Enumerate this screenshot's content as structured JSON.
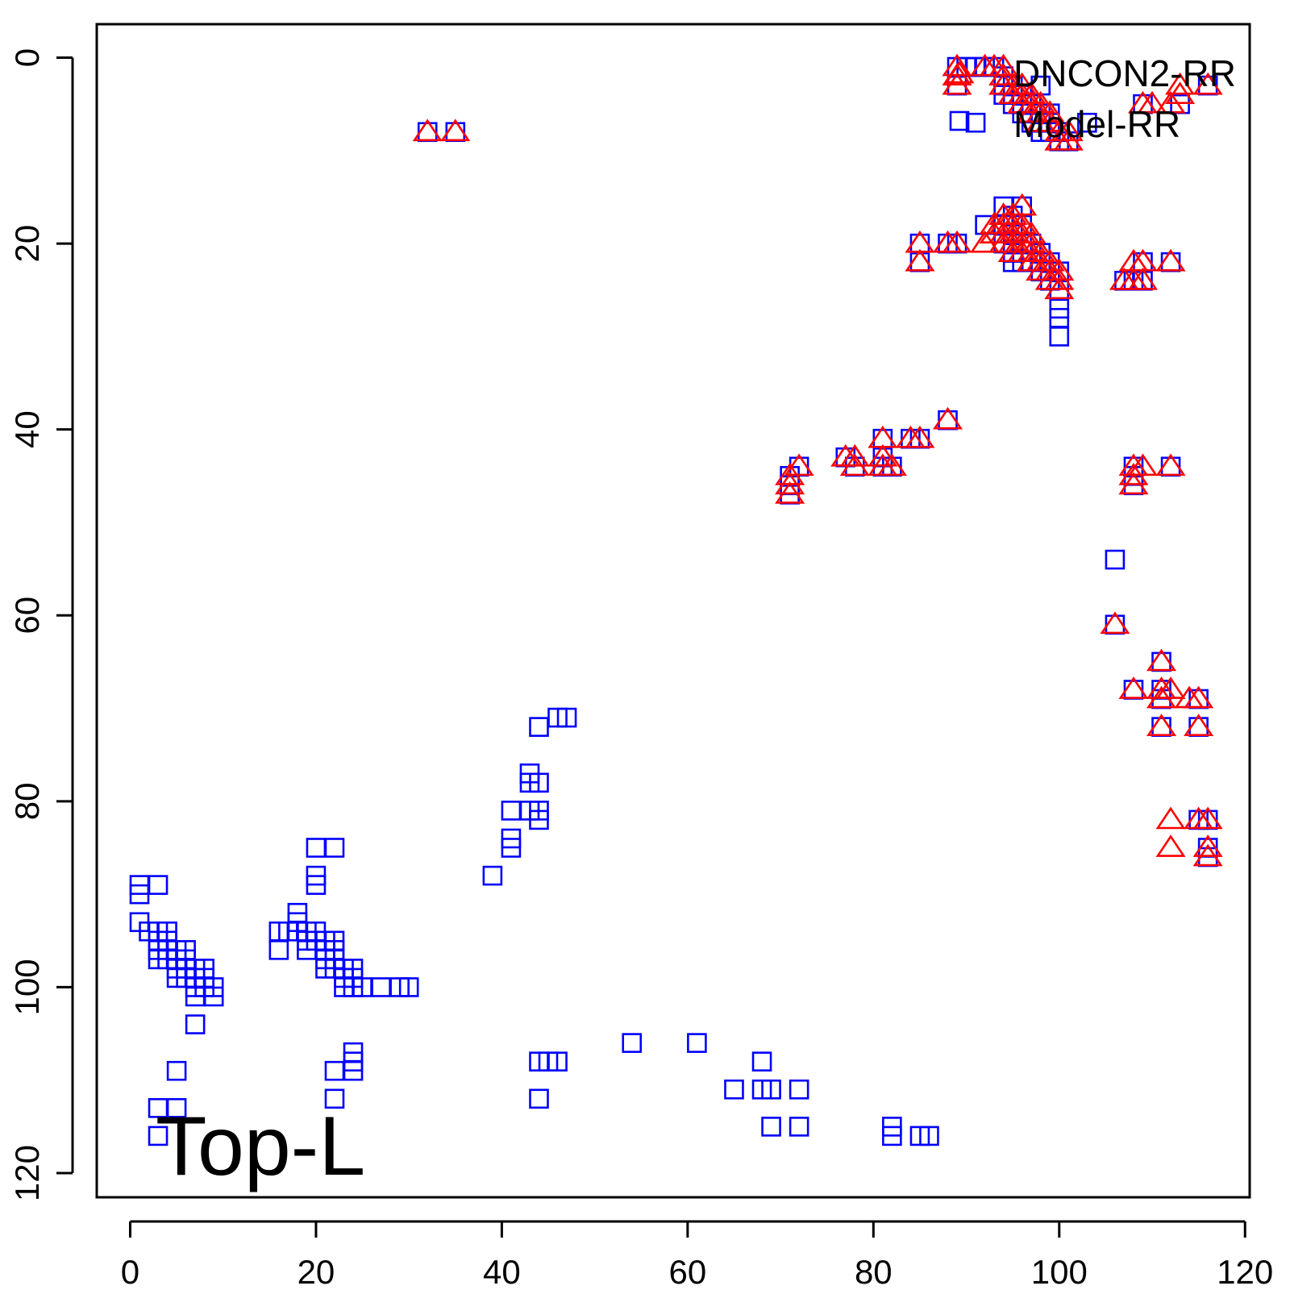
{
  "chart_data": {
    "type": "scatter",
    "title": "",
    "xlabel": "",
    "ylabel": "",
    "annotation": "Top-L",
    "xlim": [
      -3.6,
      120.5
    ],
    "ylim": [
      -3.6,
      122.6
    ],
    "y_axis_reversed": true,
    "xticks": [
      0,
      20,
      40,
      60,
      80,
      100,
      120
    ],
    "yticks": [
      0,
      20,
      40,
      60,
      80,
      100,
      120
    ],
    "legend": {
      "position": "top-right"
    },
    "series": [
      {
        "name": "DNCON2-RR",
        "marker": "triangle",
        "color": "#ff0000",
        "points": [
          [
            32,
            8
          ],
          [
            35,
            8
          ],
          [
            89,
            1
          ],
          [
            89,
            2
          ],
          [
            89,
            3
          ],
          [
            92,
            1
          ],
          [
            93,
            1
          ],
          [
            94,
            1
          ],
          [
            94,
            2
          ],
          [
            94,
            3
          ],
          [
            95,
            3
          ],
          [
            95,
            4
          ],
          [
            96,
            3
          ],
          [
            96,
            4
          ],
          [
            96,
            5
          ],
          [
            97,
            4
          ],
          [
            97,
            5
          ],
          [
            97,
            6
          ],
          [
            98,
            5
          ],
          [
            98,
            6
          ],
          [
            98,
            7
          ],
          [
            99,
            6
          ],
          [
            99,
            7
          ],
          [
            100,
            8
          ],
          [
            100,
            9
          ],
          [
            101,
            8
          ],
          [
            101,
            9
          ],
          [
            109,
            5
          ],
          [
            110,
            5
          ],
          [
            112,
            5
          ],
          [
            113,
            4
          ],
          [
            113,
            3
          ],
          [
            116,
            3
          ],
          [
            92,
            20
          ],
          [
            93,
            19
          ],
          [
            93,
            18
          ],
          [
            94,
            17
          ],
          [
            94,
            18
          ],
          [
            94,
            19
          ],
          [
            94,
            20
          ],
          [
            95,
            17
          ],
          [
            95,
            18
          ],
          [
            95,
            19
          ],
          [
            95,
            20
          ],
          [
            95,
            21
          ],
          [
            96,
            16
          ],
          [
            96,
            18
          ],
          [
            96,
            19
          ],
          [
            96,
            20
          ],
          [
            96,
            21
          ],
          [
            97,
            19
          ],
          [
            97,
            20
          ],
          [
            97,
            21
          ],
          [
            97,
            22
          ],
          [
            98,
            21
          ],
          [
            98,
            22
          ],
          [
            98,
            23
          ],
          [
            99,
            22
          ],
          [
            99,
            23
          ],
          [
            99,
            24
          ],
          [
            100,
            23
          ],
          [
            100,
            24
          ],
          [
            100,
            25
          ],
          [
            85,
            20
          ],
          [
            85,
            22
          ],
          [
            88,
            20
          ],
          [
            89,
            20
          ],
          [
            107,
            24
          ],
          [
            108,
            24
          ],
          [
            108,
            22
          ],
          [
            109,
            22
          ],
          [
            109,
            24
          ],
          [
            112,
            22
          ],
          [
            71,
            47
          ],
          [
            71,
            46
          ],
          [
            71,
            45
          ],
          [
            72,
            44
          ],
          [
            77,
            43
          ],
          [
            78,
            43
          ],
          [
            78,
            44
          ],
          [
            81,
            41
          ],
          [
            81,
            43
          ],
          [
            81,
            44
          ],
          [
            82,
            44
          ],
          [
            84,
            41
          ],
          [
            85,
            41
          ],
          [
            88,
            39
          ],
          [
            108,
            44
          ],
          [
            108,
            45
          ],
          [
            109,
            44
          ],
          [
            112,
            44
          ],
          [
            108,
            46
          ],
          [
            106,
            61
          ],
          [
            111,
            65
          ],
          [
            108,
            68
          ],
          [
            111,
            68
          ],
          [
            111,
            69
          ],
          [
            112,
            68
          ],
          [
            114,
            69
          ],
          [
            115,
            69
          ],
          [
            111,
            72
          ],
          [
            115,
            72
          ],
          [
            112,
            82
          ],
          [
            112,
            85
          ],
          [
            115,
            82
          ],
          [
            116,
            82
          ],
          [
            116,
            85
          ],
          [
            116,
            86
          ]
        ]
      },
      {
        "name": "Model-RR",
        "marker": "square",
        "color": "#0000ff",
        "points": [
          [
            32,
            8
          ],
          [
            35,
            8
          ],
          [
            89,
            1
          ],
          [
            89,
            3
          ],
          [
            90,
            1
          ],
          [
            91,
            1
          ],
          [
            91,
            7
          ],
          [
            92,
            1
          ],
          [
            93,
            1
          ],
          [
            94,
            2
          ],
          [
            94,
            3
          ],
          [
            94,
            4
          ],
          [
            95,
            3
          ],
          [
            95,
            4
          ],
          [
            95,
            5
          ],
          [
            96,
            4
          ],
          [
            96,
            5
          ],
          [
            96,
            6
          ],
          [
            97,
            5
          ],
          [
            97,
            6
          ],
          [
            97,
            7
          ],
          [
            98,
            3
          ],
          [
            98,
            6
          ],
          [
            98,
            7
          ],
          [
            98,
            8
          ],
          [
            99,
            6
          ],
          [
            99,
            7
          ],
          [
            99,
            8
          ],
          [
            100,
            8
          ],
          [
            100,
            9
          ],
          [
            101,
            9
          ],
          [
            103,
            7
          ],
          [
            109,
            5
          ],
          [
            113,
            5
          ],
          [
            116,
            3
          ],
          [
            92,
            18
          ],
          [
            94,
            16
          ],
          [
            94,
            18
          ],
          [
            94,
            20
          ],
          [
            95,
            17
          ],
          [
            95,
            19
          ],
          [
            95,
            21
          ],
          [
            95,
            22
          ],
          [
            96,
            16
          ],
          [
            96,
            18
          ],
          [
            96,
            20
          ],
          [
            96,
            22
          ],
          [
            97,
            20
          ],
          [
            97,
            22
          ],
          [
            98,
            21
          ],
          [
            98,
            23
          ],
          [
            99,
            22
          ],
          [
            99,
            24
          ],
          [
            100,
            23
          ],
          [
            100,
            25
          ],
          [
            100,
            27
          ],
          [
            100,
            28
          ],
          [
            100,
            30
          ],
          [
            85,
            20
          ],
          [
            85,
            22
          ],
          [
            88,
            20
          ],
          [
            89,
            20
          ],
          [
            107,
            24
          ],
          [
            108,
            24
          ],
          [
            109,
            24
          ],
          [
            109,
            22
          ],
          [
            112,
            22
          ],
          [
            71,
            47
          ],
          [
            71,
            46
          ],
          [
            71,
            45
          ],
          [
            72,
            44
          ],
          [
            77,
            43
          ],
          [
            78,
            44
          ],
          [
            81,
            41
          ],
          [
            81,
            43
          ],
          [
            81,
            44
          ],
          [
            82,
            44
          ],
          [
            84,
            41
          ],
          [
            85,
            41
          ],
          [
            88,
            39
          ],
          [
            108,
            44
          ],
          [
            108,
            45
          ],
          [
            108,
            46
          ],
          [
            112,
            44
          ],
          [
            106,
            54
          ],
          [
            106,
            61
          ],
          [
            111,
            65
          ],
          [
            108,
            68
          ],
          [
            111,
            68
          ],
          [
            111,
            69
          ],
          [
            111,
            72
          ],
          [
            115,
            69
          ],
          [
            115,
            72
          ],
          [
            115,
            82
          ],
          [
            116,
            82
          ],
          [
            116,
            85
          ],
          [
            116,
            86
          ],
          [
            39,
            88
          ],
          [
            41,
            81
          ],
          [
            41,
            84
          ],
          [
            41,
            85
          ],
          [
            43,
            77
          ],
          [
            43,
            78
          ],
          [
            43,
            81
          ],
          [
            44,
            72
          ],
          [
            44,
            78
          ],
          [
            44,
            81
          ],
          [
            44,
            82
          ],
          [
            46,
            71
          ],
          [
            47,
            71
          ],
          [
            1,
            89
          ],
          [
            1,
            90
          ],
          [
            3,
            89
          ],
          [
            1,
            93
          ],
          [
            2,
            94
          ],
          [
            3,
            94
          ],
          [
            3,
            95
          ],
          [
            3,
            96
          ],
          [
            3,
            97
          ],
          [
            4,
            94
          ],
          [
            4,
            95
          ],
          [
            4,
            96
          ],
          [
            4,
            97
          ],
          [
            5,
            96
          ],
          [
            5,
            97
          ],
          [
            5,
            98
          ],
          [
            5,
            99
          ],
          [
            6,
            96
          ],
          [
            6,
            97
          ],
          [
            6,
            98
          ],
          [
            6,
            99
          ],
          [
            7,
            98
          ],
          [
            7,
            99
          ],
          [
            7,
            100
          ],
          [
            7,
            101
          ],
          [
            7,
            104
          ],
          [
            8,
            98
          ],
          [
            8,
            99
          ],
          [
            8,
            100
          ],
          [
            9,
            100
          ],
          [
            9,
            101
          ],
          [
            16,
            94
          ],
          [
            16,
            96
          ],
          [
            17,
            94
          ],
          [
            18,
            92
          ],
          [
            18,
            93
          ],
          [
            18,
            94
          ],
          [
            19,
            94
          ],
          [
            19,
            95
          ],
          [
            19,
            96
          ],
          [
            20,
            85
          ],
          [
            20,
            88
          ],
          [
            20,
            89
          ],
          [
            20,
            94
          ],
          [
            20,
            95
          ],
          [
            21,
            95
          ],
          [
            21,
            96
          ],
          [
            21,
            97
          ],
          [
            21,
            98
          ],
          [
            22,
            85
          ],
          [
            22,
            95
          ],
          [
            22,
            96
          ],
          [
            22,
            97
          ],
          [
            22,
            98
          ],
          [
            23,
            98
          ],
          [
            23,
            99
          ],
          [
            23,
            100
          ],
          [
            24,
            98
          ],
          [
            24,
            99
          ],
          [
            24,
            100
          ],
          [
            25,
            100
          ],
          [
            27,
            100
          ],
          [
            29,
            100
          ],
          [
            30,
            100
          ],
          [
            5,
            109
          ],
          [
            3,
            113
          ],
          [
            5,
            113
          ],
          [
            3,
            116
          ],
          [
            22,
            109
          ],
          [
            22,
            112
          ],
          [
            24,
            107
          ],
          [
            24,
            108
          ],
          [
            24,
            109
          ],
          [
            44,
            108
          ],
          [
            44,
            112
          ],
          [
            45,
            108
          ],
          [
            46,
            108
          ],
          [
            54,
            106
          ],
          [
            61,
            106
          ],
          [
            65,
            111
          ],
          [
            68,
            108
          ],
          [
            68,
            111
          ],
          [
            69,
            111
          ],
          [
            69,
            115
          ],
          [
            72,
            111
          ],
          [
            72,
            115
          ],
          [
            82,
            115
          ],
          [
            82,
            116
          ],
          [
            85,
            116
          ],
          [
            86,
            116
          ]
        ]
      }
    ]
  }
}
